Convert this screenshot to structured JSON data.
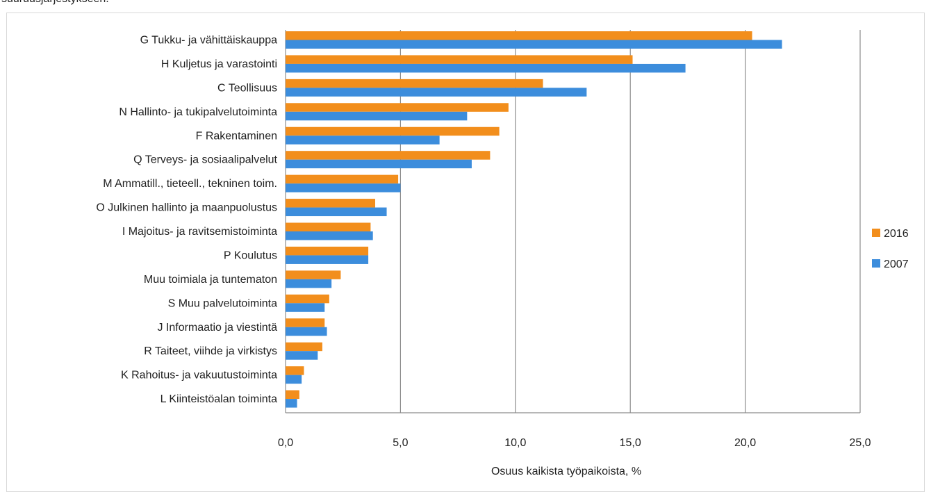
{
  "caption_fragment": "suuruusjärjestykseen.",
  "chart_data": {
    "type": "bar",
    "orientation": "horizontal",
    "categories": [
      "G Tukku- ja vähittäiskauppa",
      "H Kuljetus ja varastointi",
      "C Teollisuus",
      "N Hallinto- ja tukipalvelutoiminta",
      "F Rakentaminen",
      "Q Terveys- ja sosiaalipalvelut",
      "M Ammatill., tieteell., tekninen toim.",
      "O Julkinen hallinto ja maanpuolustus",
      "I Majoitus- ja ravitsemistoiminta",
      "P Koulutus",
      "Muu toimiala ja tuntematon",
      "S Muu palvelutoiminta",
      "J Informaatio ja viestintä",
      "R Taiteet, viihde ja virkistys",
      "K Rahoitus- ja vakuutustoiminta",
      "L Kiinteistöalan toiminta"
    ],
    "series": [
      {
        "name": "2016",
        "color": "#F28E1C",
        "values": [
          20.3,
          15.1,
          11.2,
          9.7,
          9.3,
          8.9,
          4.9,
          3.9,
          3.7,
          3.6,
          2.4,
          1.9,
          1.7,
          1.6,
          0.8,
          0.6
        ]
      },
      {
        "name": "2007",
        "color": "#3C8DDC",
        "values": [
          21.6,
          17.4,
          13.1,
          7.9,
          6.7,
          8.1,
          5.0,
          4.4,
          3.8,
          3.6,
          2.0,
          1.7,
          1.8,
          1.4,
          0.7,
          0.5
        ]
      }
    ],
    "xlim": [
      0,
      25
    ],
    "xticks": [
      "0,0",
      "5,0",
      "10,0",
      "15,0",
      "20,0",
      "25,0"
    ],
    "xlabel": "Osuus kaikista työpaikoista, %",
    "grid": "vertical",
    "legend": "right",
    "legend_order": [
      "2016",
      "2007"
    ]
  }
}
